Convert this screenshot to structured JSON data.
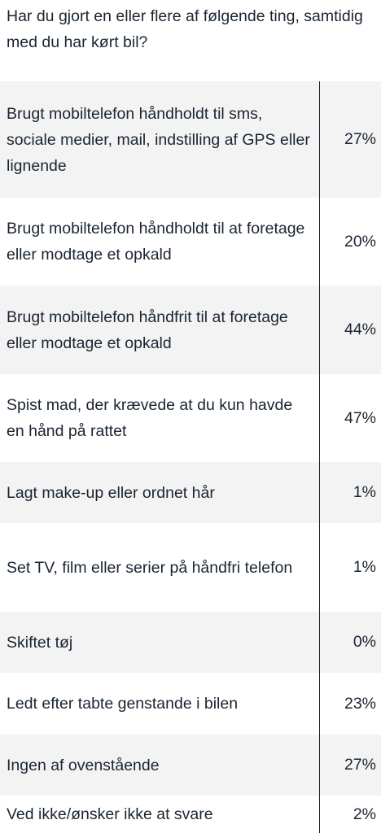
{
  "question": "Har du gjort en eller flere af følgende ting, samtidig med du har kørt bil?",
  "rows": [
    {
      "label": "Brugt mobiltelefon håndholdt til sms, sociale medier, mail, indstilling af GPS eller lignende",
      "value": "27%"
    },
    {
      "label": "Brugt mobiltelefon håndholdt til at foretage eller modtage et opkald",
      "value": "20%"
    },
    {
      "label": "Brugt mobiltelefon håndfrit til at foretage eller modtage et opkald",
      "value": "44%"
    },
    {
      "label": "Spist mad, der krævede at du kun havde en hånd på rattet",
      "value": "47%"
    },
    {
      "label": "Lagt make-up eller ordnet hår",
      "value": "1%"
    },
    {
      "label": "Set TV, film eller serier på håndfri telefon",
      "value": "1%"
    },
    {
      "label": "Skiftet tøj",
      "value": "0%"
    },
    {
      "label": "Ledt efter tabte genstande i bilen",
      "value": "23%"
    },
    {
      "label": "Ingen af ovenstående",
      "value": "27%"
    },
    {
      "label": "Ved ikke/ønsker ikke at svare",
      "value": "2%"
    }
  ]
}
